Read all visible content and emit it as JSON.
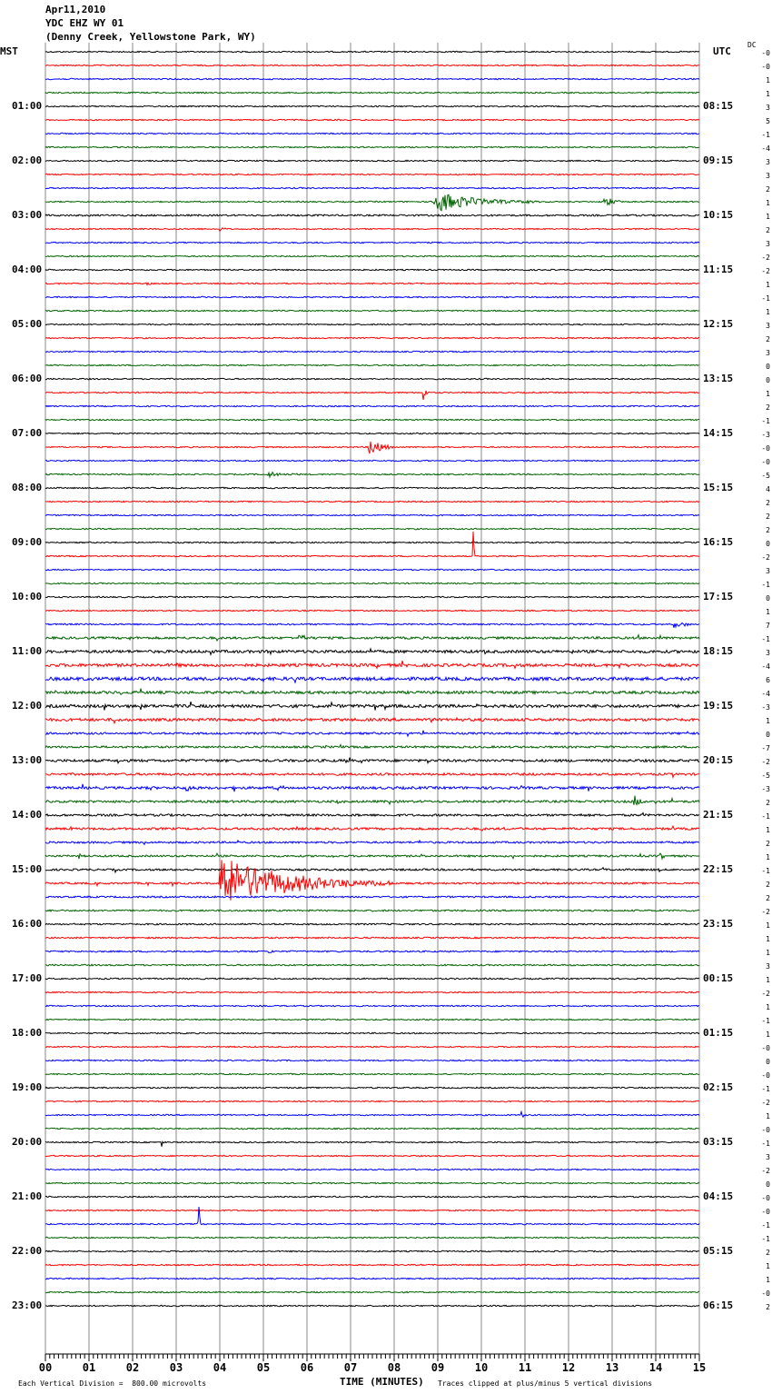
{
  "header": {
    "date": "Apr11,2010",
    "station": "YDC EHZ WY 01",
    "location": "(Denny Creek, Yellowstone Park, WY)",
    "left_zone": "MST",
    "right_zone": "UTC",
    "dc_label": "DC"
  },
  "footer": {
    "scale_note": "Each Vertical Division =  800.00 microvolts",
    "xlabel": "TIME (MINUTES)",
    "clip_note": "Traces clipped at plus/minus 5 vertical divisions"
  },
  "chart_data": {
    "type": "line",
    "title": "YDC EHZ WY 01 helicorder, Apr11,2010",
    "xlabel": "TIME (MINUTES)",
    "xlim": [
      0,
      15
    ],
    "x_ticks": [
      "00",
      "01",
      "02",
      "03",
      "04",
      "05",
      "06",
      "07",
      "08",
      "09",
      "10",
      "11",
      "12",
      "13",
      "14",
      "15"
    ],
    "minutes_per_line": 15,
    "trace_colors": [
      "#000000",
      "#ff0000",
      "#0000ff",
      "#006400"
    ],
    "mst_labels": [
      "01:00",
      "02:00",
      "03:00",
      "04:00",
      "05:00",
      "06:00",
      "07:00",
      "08:00",
      "09:00",
      "10:00",
      "11:00",
      "12:00",
      "13:00",
      "14:00",
      "15:00",
      "16:00",
      "17:00",
      "18:00",
      "19:00",
      "20:00",
      "21:00",
      "22:00",
      "23:00"
    ],
    "utc_labels": [
      "08:15",
      "09:15",
      "10:15",
      "11:15",
      "12:15",
      "13:15",
      "14:15",
      "15:15",
      "16:15",
      "17:15",
      "18:15",
      "19:15",
      "20:15",
      "21:15",
      "22:15",
      "23:15",
      "00:15",
      "01:15",
      "02:15",
      "03:15",
      "04:15",
      "05:15",
      "06:15"
    ],
    "dc_offsets": [
      "-0",
      "-0",
      "1",
      "1",
      "3",
      "5",
      "-1",
      "-4",
      "3",
      "3",
      "2",
      "1",
      "1",
      "2",
      "3",
      "-2",
      "-2",
      "1",
      "-1",
      "1",
      "3",
      "2",
      "3",
      "0",
      "0",
      "1",
      "2",
      "-1",
      "-3",
      "-0",
      "-0",
      "-5",
      "4",
      "2",
      "2",
      "2",
      "0",
      "-2",
      "3",
      "-1",
      "0",
      "1",
      "7",
      "-1",
      "3",
      "-4",
      "6",
      "-4",
      "-3",
      "1",
      "0",
      "-7",
      "-2",
      "-5",
      "-3",
      "2",
      "-1",
      "1",
      "2",
      "1",
      "-1",
      "2",
      "2",
      "-2",
      "1",
      "1",
      "1",
      "3",
      "1",
      "-2",
      "1",
      "-1",
      "1",
      "-0",
      "0",
      "-0",
      "-1",
      "-2",
      "1",
      "-0",
      "-1",
      "3",
      "-2",
      "0",
      "-0",
      "-0",
      "-1",
      "-1",
      "2",
      "1",
      "1",
      "-0",
      "2"
    ],
    "noise_level": [
      1,
      1,
      1,
      1,
      1,
      1,
      1,
      1,
      1,
      1,
      1,
      1,
      1.3,
      1,
      1,
      1,
      1,
      1,
      1,
      1,
      1,
      1,
      1,
      1,
      1,
      1,
      1,
      1,
      1,
      1,
      1,
      1,
      1,
      1,
      1,
      1,
      1,
      1,
      1,
      1,
      1,
      1,
      1.2,
      1.8,
      2.2,
      2.4,
      2.6,
      2.2,
      2.4,
      2.2,
      1.6,
      1.6,
      2,
      1.8,
      2,
      1.8,
      1.7,
      1.8,
      1.5,
      1.5,
      1.5,
      1.5,
      1.3,
      1.3,
      1.2,
      1.2,
      1.2,
      1.2,
      1.1,
      1,
      1,
      1,
      1,
      1,
      1,
      1,
      1,
      1,
      1,
      1,
      1,
      1,
      1,
      1,
      1,
      1,
      1,
      1,
      1,
      1,
      1,
      1,
      1
    ],
    "events": [
      {
        "row": 11,
        "minute": 8.9,
        "amplitude": 12,
        "duration": 2.5
      },
      {
        "row": 11,
        "minute": 12.8,
        "amplitude": 6,
        "duration": 0.6
      },
      {
        "row": 13,
        "minute": 4.0,
        "amplitude": 3,
        "duration": 0.2
      },
      {
        "row": 17,
        "minute": 2.3,
        "amplitude": 3,
        "duration": 0.2
      },
      {
        "row": 25,
        "minute": 8.65,
        "amplitude": 14,
        "duration": 0.1
      },
      {
        "row": 29,
        "minute": 7.4,
        "amplitude": 13,
        "duration": 0.6
      },
      {
        "row": 31,
        "minute": 5.1,
        "amplitude": 4,
        "duration": 0.8
      },
      {
        "row": 37,
        "minute": 9.8,
        "amplitude": 40,
        "duration": 0.05
      },
      {
        "row": 42,
        "minute": 14.4,
        "amplitude": 4,
        "duration": 0.6
      },
      {
        "row": 43,
        "minute": 5.8,
        "amplitude": 4,
        "duration": 0.4
      },
      {
        "row": 44,
        "minute": 7.4,
        "amplitude": 8,
        "duration": 0.2
      },
      {
        "row": 54,
        "minute": 3.2,
        "amplitude": 5,
        "duration": 0.3
      },
      {
        "row": 54,
        "minute": 5.3,
        "amplitude": 5,
        "duration": 0.3
      },
      {
        "row": 55,
        "minute": 6.7,
        "amplitude": 5,
        "duration": 0.2
      },
      {
        "row": 55,
        "minute": 13.5,
        "amplitude": 8,
        "duration": 0.3
      },
      {
        "row": 59,
        "minute": 14.1,
        "amplitude": 6,
        "duration": 0.1
      },
      {
        "row": 61,
        "minute": 4.0,
        "amplitude": 30,
        "duration": 4.0
      },
      {
        "row": 66,
        "minute": 5.1,
        "amplitude": 4,
        "duration": 0.2
      },
      {
        "row": 78,
        "minute": 10.9,
        "amplitude": 6,
        "duration": 0.1
      },
      {
        "row": 80,
        "minute": 2.65,
        "amplitude": 6,
        "duration": 0.1
      },
      {
        "row": 86,
        "minute": 3.5,
        "amplitude": 34,
        "duration": 0.05
      }
    ]
  }
}
